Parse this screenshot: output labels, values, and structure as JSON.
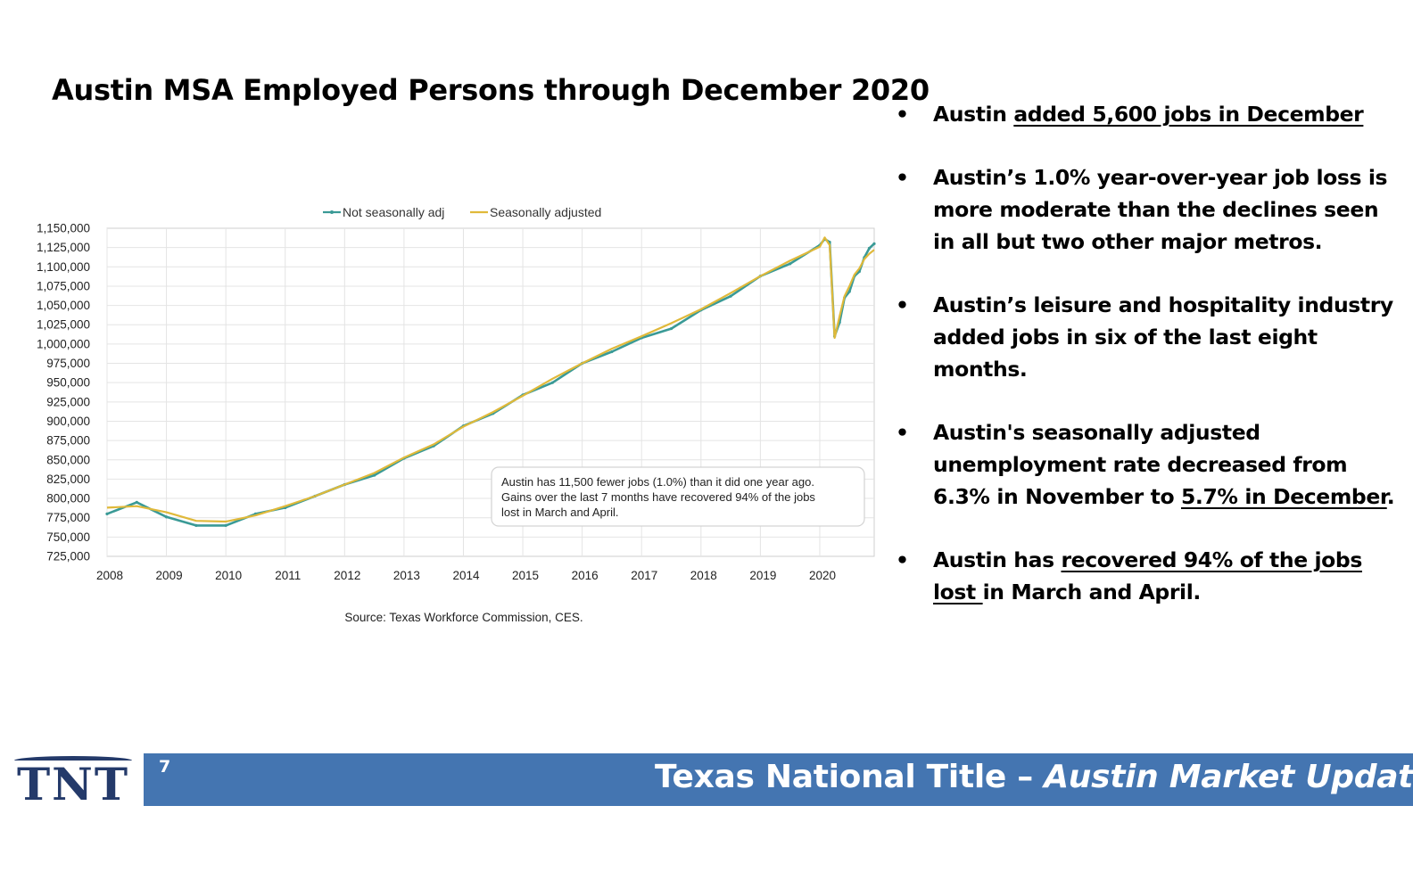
{
  "slide": {
    "title": "Austin MSA Employed Persons through December 2020",
    "page_number": "7",
    "footer_title_main": "Texas National Title – ",
    "footer_title_italic": "Austin Market Update",
    "logo_text": "TNT"
  },
  "bullets": [
    {
      "segments": [
        {
          "text": "Austin ",
          "underline": false
        },
        {
          "text": "added 5,600 jobs in December",
          "underline": true
        }
      ]
    },
    {
      "segments": [
        {
          "text": "Austin’s 1.0% year-over-year job loss is more moderate than the declines seen in all but two other major metros.",
          "underline": false
        }
      ]
    },
    {
      "segments": [
        {
          "text": "Austin’s leisure and hospitality industry added jobs in six of the last eight months.",
          "underline": false
        }
      ]
    },
    {
      "segments": [
        {
          "text": "Austin's seasonally adjusted unemployment rate decreased from 6.3% in November to ",
          "underline": false
        },
        {
          "text": "5.7% in December",
          "underline": true
        },
        {
          "text": ".",
          "underline": false
        }
      ]
    },
    {
      "segments": [
        {
          "text": "Austin has ",
          "underline": false
        },
        {
          "text": "recovered 94% of the jobs lost ",
          "underline": true
        },
        {
          "text": "in March and April.",
          "underline": false
        }
      ]
    }
  ],
  "chart_data": {
    "type": "line",
    "title": "",
    "xlabel": "",
    "ylabel": "",
    "x_ticks": [
      "2008",
      "2009",
      "2010",
      "2011",
      "2012",
      "2013",
      "2014",
      "2015",
      "2016",
      "2017",
      "2018",
      "2019",
      "2020"
    ],
    "y_ticks": [
      "1,150,000",
      "1,125,000",
      "1,100,000",
      "1,075,000",
      "1,050,000",
      "1,025,000",
      "1,000,000",
      "975,000",
      "950,000",
      "925,000",
      "900,000",
      "875,000",
      "850,000",
      "825,000",
      "800,000",
      "775,000",
      "750,000",
      "725,000"
    ],
    "ylim": [
      725000,
      1150000
    ],
    "xlim": [
      "2008-01",
      "2020-12"
    ],
    "grid": true,
    "legend_position": "top-center",
    "annotation": [
      "Austin has 11,500 fewer jobs (1.0%) than it did one year ago.",
      "Gains over the last 7 months have recovered 94% of the jobs",
      "lost in March and April."
    ],
    "source": "Source: Texas Workforce Commission, CES.",
    "series": [
      {
        "name": "Not seasonally adj",
        "color": "#3a9a96",
        "annual_points": [
          [
            "2008-01",
            780000
          ],
          [
            "2008-07",
            795000
          ],
          [
            "2009-01",
            776000
          ],
          [
            "2009-07",
            765000
          ],
          [
            "2010-01",
            765000
          ],
          [
            "2010-07",
            780000
          ],
          [
            "2011-01",
            788000
          ],
          [
            "2011-07",
            803000
          ],
          [
            "2012-01",
            818000
          ],
          [
            "2012-07",
            830000
          ],
          [
            "2013-01",
            852000
          ],
          [
            "2013-07",
            868000
          ],
          [
            "2014-01",
            894000
          ],
          [
            "2014-07",
            910000
          ],
          [
            "2015-01",
            934000
          ],
          [
            "2015-07",
            950000
          ],
          [
            "2016-01",
            975000
          ],
          [
            "2016-07",
            990000
          ],
          [
            "2017-01",
            1008000
          ],
          [
            "2017-07",
            1020000
          ],
          [
            "2018-01",
            1044000
          ],
          [
            "2018-07",
            1062000
          ],
          [
            "2019-01",
            1088000
          ],
          [
            "2019-07",
            1104000
          ],
          [
            "2020-01",
            1128000
          ],
          [
            "2020-02",
            1136000
          ],
          [
            "2020-03",
            1132000
          ],
          [
            "2020-04",
            1010000
          ],
          [
            "2020-05",
            1028000
          ],
          [
            "2020-06",
            1060000
          ],
          [
            "2020-07",
            1068000
          ],
          [
            "2020-08",
            1088000
          ],
          [
            "2020-09",
            1094000
          ],
          [
            "2020-10",
            1112000
          ],
          [
            "2020-11",
            1124000
          ],
          [
            "2020-12",
            1130000
          ]
        ]
      },
      {
        "name": "Seasonally adjusted",
        "color": "#e0b93a",
        "annual_points": [
          [
            "2008-01",
            788000
          ],
          [
            "2008-07",
            790000
          ],
          [
            "2009-01",
            782000
          ],
          [
            "2009-07",
            771000
          ],
          [
            "2010-01",
            770000
          ],
          [
            "2010-07",
            778000
          ],
          [
            "2011-01",
            790000
          ],
          [
            "2011-07",
            803000
          ],
          [
            "2012-01",
            818000
          ],
          [
            "2012-07",
            833000
          ],
          [
            "2013-01",
            853000
          ],
          [
            "2013-07",
            870000
          ],
          [
            "2014-01",
            893000
          ],
          [
            "2014-07",
            912000
          ],
          [
            "2015-01",
            933000
          ],
          [
            "2015-07",
            955000
          ],
          [
            "2016-01",
            975000
          ],
          [
            "2016-07",
            994000
          ],
          [
            "2017-01",
            1010000
          ],
          [
            "2017-07",
            1027000
          ],
          [
            "2018-01",
            1045000
          ],
          [
            "2018-07",
            1066000
          ],
          [
            "2019-01",
            1088000
          ],
          [
            "2019-07",
            1108000
          ],
          [
            "2020-01",
            1126000
          ],
          [
            "2020-02",
            1138000
          ],
          [
            "2020-03",
            1128000
          ],
          [
            "2020-04",
            1008000
          ],
          [
            "2020-05",
            1036000
          ],
          [
            "2020-06",
            1062000
          ],
          [
            "2020-07",
            1075000
          ],
          [
            "2020-08",
            1090000
          ],
          [
            "2020-09",
            1098000
          ],
          [
            "2020-10",
            1110000
          ],
          [
            "2020-11",
            1117000
          ],
          [
            "2020-12",
            1122000
          ]
        ]
      }
    ]
  }
}
